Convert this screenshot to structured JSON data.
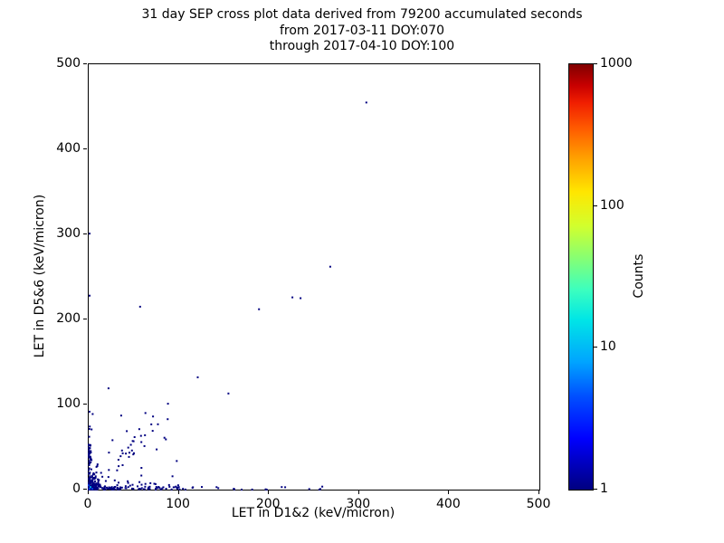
{
  "chart_data": {
    "type": "scatter",
    "title_lines": [
      "31 day SEP cross plot data derived from 79200 accumulated seconds",
      "from 2017-03-11 DOY:070",
      "through 2017-04-10 DOY:100"
    ],
    "xlabel": "LET in D1&2 (keV/micron)",
    "ylabel": "LET in D5&6 (keV/micron)",
    "xlim": [
      0,
      500
    ],
    "ylim": [
      0,
      500
    ],
    "xticks": [
      0,
      100,
      200,
      300,
      400,
      500
    ],
    "yticks": [
      0,
      100,
      200,
      300,
      400,
      500
    ],
    "grid": false,
    "background": "#ffffff",
    "colorbar": {
      "label": "Counts",
      "scale": "log",
      "min": 1,
      "max": 1000,
      "ticks": [
        1,
        10,
        100,
        1000
      ],
      "colormap": "jet"
    },
    "colors": {
      "point": "#000080",
      "point_bright": "#0040dd",
      "point_cyan": "#00a8e8",
      "axis": "#000000"
    },
    "outlier_points": [
      [
        308,
        455
      ],
      [
        268,
        262
      ],
      [
        226,
        226
      ],
      [
        235,
        225
      ],
      [
        57,
        215
      ],
      [
        189,
        212
      ],
      [
        121,
        132
      ],
      [
        155,
        113
      ],
      [
        1,
        301
      ],
      [
        1,
        228
      ],
      [
        63,
        90
      ],
      [
        71,
        69
      ],
      [
        48,
        46
      ],
      [
        84,
        61
      ],
      [
        36,
        87
      ],
      [
        22,
        119
      ]
    ],
    "highlight_points": [
      {
        "x": 1,
        "y": 1,
        "color": "#0040dd"
      },
      {
        "x": 2,
        "y": 3,
        "color": "#00a8e8"
      },
      {
        "x": 4,
        "y": 1,
        "color": "#0040dd"
      },
      {
        "x": 0,
        "y": 5,
        "color": "#0040dd"
      }
    ],
    "clusters": [
      {
        "kind": "blob",
        "xs": 4,
        "ys": 5,
        "n": 170
      },
      {
        "kind": "hband",
        "x": [
          0,
          105
        ],
        "ys": 2.2,
        "n": 110
      },
      {
        "kind": "hband",
        "x": [
          105,
          270
        ],
        "ys": 1.5,
        "n": 18
      },
      {
        "kind": "vband",
        "y": [
          0,
          55
        ],
        "xs": 1.4,
        "n": 60
      },
      {
        "kind": "vband",
        "y": [
          55,
          95
        ],
        "xs": 2.2,
        "n": 6
      },
      {
        "kind": "diag",
        "x": [
          5,
          88
        ],
        "slope": [
          0.75,
          1.25
        ],
        "jitter": 9,
        "n": 30
      },
      {
        "kind": "uniform",
        "x": [
          5,
          100
        ],
        "y": [
          5,
          75
        ],
        "n": 14
      }
    ]
  }
}
